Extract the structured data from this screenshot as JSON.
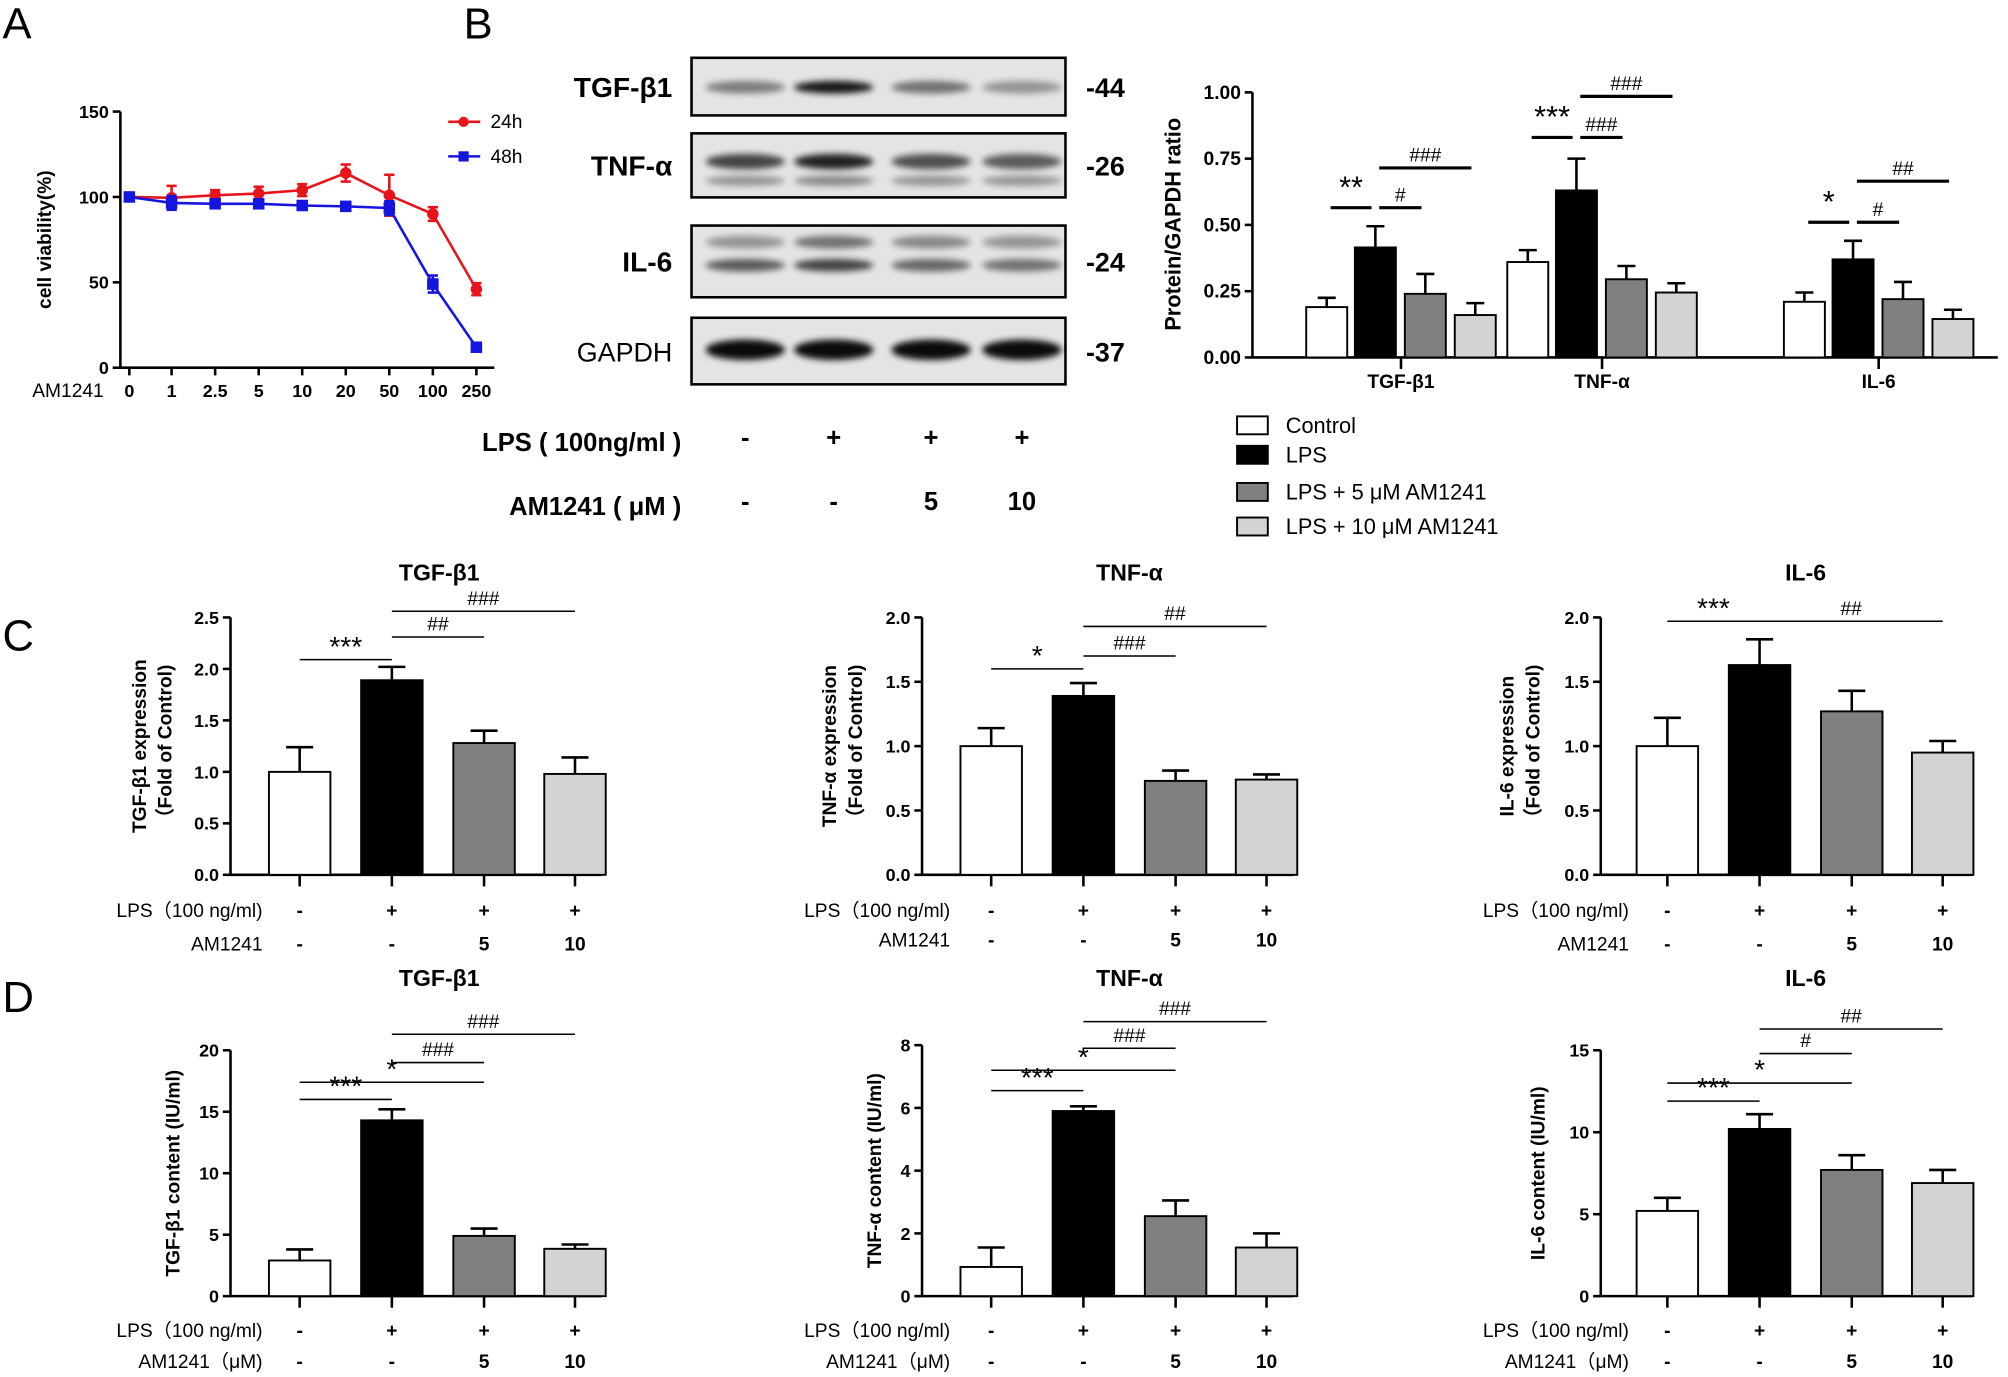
{
  "panel_labels": {
    "A": "A",
    "B": "B",
    "C": "C",
    "D": "D"
  },
  "colors": {
    "fills": [
      "#ffffff",
      "#000000",
      "#808080",
      "#d3d3d3"
    ],
    "red": "#e8141b",
    "blue": "#1515e0"
  },
  "blot": {
    "rows": [
      {
        "label": "TGF-β1",
        "mw": "-44"
      },
      {
        "label": "TNF-α",
        "mw": "-26"
      },
      {
        "label": "IL-6",
        "mw": "-24"
      },
      {
        "label": "GAPDH",
        "mw": "-37"
      }
    ],
    "conditions": [
      {
        "label": "LPS ( 100ng/ml )",
        "values": [
          "-",
          "+",
          "+",
          "+"
        ]
      },
      {
        "label": "AM1241 ( μM )",
        "values": [
          "-",
          "-",
          "5",
          "10"
        ]
      }
    ]
  },
  "chart_data": [
    {
      "id": "A",
      "type": "line",
      "xlabel": "AM1241",
      "ylabel": "cell viability(%)",
      "categories": [
        "0",
        "1",
        "2.5",
        "5",
        "10",
        "20",
        "50",
        "100",
        "250"
      ],
      "ylim": [
        0,
        150
      ],
      "yticks": [
        "0",
        "50",
        "100",
        "150"
      ],
      "legend_position": "top-right",
      "series": [
        {
          "name": "24h",
          "marker": "circle",
          "color": "#e8141b",
          "values": [
            100,
            99.5,
            101,
            102,
            104,
            114,
            101,
            90,
            46
          ],
          "errors": [
            1,
            7,
            3,
            4,
            3.5,
            5,
            12,
            4,
            3.5
          ]
        },
        {
          "name": "48h",
          "marker": "square",
          "color": "#1515e0",
          "values": [
            100,
            96.5,
            96,
            96,
            95,
            94.5,
            93.5,
            49,
            12
          ],
          "errors": [
            1,
            4,
            1,
            1,
            1,
            1,
            4,
            5,
            1
          ]
        }
      ]
    },
    {
      "id": "B",
      "type": "bar",
      "ylabel": "Protein/GAPDH ratio",
      "categories": [
        "TGF-β1",
        "TNF-α",
        "IL-6"
      ],
      "ylim": [
        0,
        1
      ],
      "yticks": [
        "0.00",
        "0.25",
        "0.50",
        "0.75",
        "1.00"
      ],
      "legend": [
        "Control",
        "LPS",
        "LPS + 5 μM AM1241",
        "LPS + 10 μM AM1241"
      ],
      "series_values": [
        [
          0.19,
          0.415,
          0.24,
          0.16
        ],
        [
          0.36,
          0.63,
          0.295,
          0.245
        ],
        [
          0.21,
          0.37,
          0.22,
          0.145
        ]
      ],
      "series_errors": [
        [
          0.035,
          0.08,
          0.075,
          0.045
        ],
        [
          0.045,
          0.12,
          0.05,
          0.035
        ],
        [
          0.035,
          0.07,
          0.065,
          0.035
        ]
      ],
      "significance": [
        [
          {
            "from": 0,
            "to": 1,
            "y": 0.565,
            "label": "**"
          },
          {
            "from": 1,
            "to": 2,
            "y": 0.565,
            "label": "#"
          },
          {
            "from": 1,
            "to": 3,
            "y": 0.715,
            "label": "###"
          }
        ],
        [
          {
            "from": 0,
            "to": 1,
            "y": 0.83,
            "label": "***"
          },
          {
            "from": 1,
            "to": 2,
            "y": 0.83,
            "label": "###"
          },
          {
            "from": 1,
            "to": 3,
            "y": 0.985,
            "label": "###"
          }
        ],
        [
          {
            "from": 0,
            "to": 1,
            "y": 0.51,
            "label": "*"
          },
          {
            "from": 1,
            "to": 2,
            "y": 0.51,
            "label": "#"
          },
          {
            "from": 1,
            "to": 3,
            "y": 0.665,
            "label": "##"
          }
        ]
      ]
    },
    {
      "id": "C1",
      "type": "bar",
      "title": "TGF-β1",
      "ylabel": [
        "TGF-β1 expression",
        "（Fold of Control)"
      ],
      "ylim": [
        0,
        2.5
      ],
      "yticks": [
        "0.0",
        "0.5",
        "1.0",
        "1.5",
        "2.0",
        "2.5"
      ],
      "values": [
        1.0,
        1.89,
        1.28,
        0.98
      ],
      "errors": [
        0.24,
        0.13,
        0.12,
        0.16
      ],
      "conditions": [
        {
          "label": "LPS（100 ng/ml)",
          "values": [
            "-",
            "+",
            "+",
            "+"
          ]
        },
        {
          "label": "AM1241",
          "values": [
            "-",
            "-",
            "5",
            "10"
          ]
        }
      ],
      "significance": [
        {
          "from": 0,
          "to": 1,
          "y": 2.09,
          "label": "***"
        },
        {
          "from": 1,
          "to": 2,
          "y": 2.31,
          "label": "##"
        },
        {
          "from": 1,
          "to": 3,
          "y": 2.56,
          "label": "###"
        }
      ]
    },
    {
      "id": "C2",
      "type": "bar",
      "title": "TNF-α",
      "ylabel": [
        "TNF-α expression",
        "（Fold of Control)"
      ],
      "ylim": [
        0,
        2
      ],
      "yticks": [
        "0.0",
        "0.5",
        "1.0",
        "1.5",
        "2.0"
      ],
      "values": [
        1.0,
        1.39,
        0.73,
        0.74
      ],
      "errors": [
        0.14,
        0.1,
        0.08,
        0.04
      ],
      "conditions": [
        {
          "label": "LPS（100 ng/ml)",
          "values": [
            "-",
            "+",
            "+",
            "+"
          ]
        },
        {
          "label": "AM1241",
          "values": [
            "-",
            "-",
            "5",
            "10"
          ]
        }
      ],
      "significance": [
        {
          "from": 0,
          "to": 1,
          "y": 1.6,
          "label": "*"
        },
        {
          "from": 1,
          "to": 2,
          "y": 1.7,
          "label": "###"
        },
        {
          "from": 1,
          "to": 3,
          "y": 1.93,
          "label": "##"
        }
      ]
    },
    {
      "id": "C3",
      "type": "bar",
      "title": "IL-6",
      "ylabel": [
        "IL-6 expression",
        "（Fold of Control)"
      ],
      "ylim": [
        0,
        2
      ],
      "yticks": [
        "0.0",
        "0.5",
        "1.0",
        "1.5",
        "2.0"
      ],
      "values": [
        1.0,
        1.63,
        1.27,
        0.95
      ],
      "errors": [
        0.22,
        0.2,
        0.16,
        0.09
      ],
      "conditions": [
        {
          "label": "LPS（100 ng/ml)",
          "values": [
            "-",
            "+",
            "+",
            "+"
          ]
        },
        {
          "label": "AM1241",
          "values": [
            "-",
            "-",
            "5",
            "10"
          ]
        }
      ],
      "significance": [
        {
          "from": 0,
          "to": 1,
          "y": 1.97,
          "label": "***"
        },
        {
          "from": 1,
          "to": 3,
          "y": 1.97,
          "label": "##"
        }
      ]
    },
    {
      "id": "D1",
      "type": "bar",
      "title": "TGF-β1",
      "ylabel": [
        "TGF-β1 content (IU/ml)"
      ],
      "ylim": [
        0,
        20
      ],
      "yticks": [
        "0",
        "5",
        "10",
        "15",
        "20"
      ],
      "values": [
        2.9,
        14.3,
        4.9,
        3.85
      ],
      "errors": [
        0.9,
        0.9,
        0.6,
        0.35
      ],
      "conditions": [
        {
          "label": "LPS（100 ng/ml)",
          "values": [
            "-",
            "+",
            "+",
            "+"
          ]
        },
        {
          "label": "AM1241（μM)",
          "values": [
            "-",
            "-",
            "5",
            "10"
          ]
        }
      ],
      "significance": [
        {
          "from": 0,
          "to": 1,
          "y": 16.0,
          "label": "***"
        },
        {
          "from": 0,
          "to": 2,
          "y": 17.4,
          "label": "*"
        },
        {
          "from": 1,
          "to": 2,
          "y": 19.0,
          "label": "###"
        },
        {
          "from": 1,
          "to": 3,
          "y": 21.3,
          "label": "###"
        }
      ]
    },
    {
      "id": "D2",
      "type": "bar",
      "title": "TNF-α",
      "ylabel": [
        "TNF-α content (IU/ml)"
      ],
      "ylim": [
        0,
        8
      ],
      "yticks": [
        "0",
        "2",
        "4",
        "6",
        "8"
      ],
      "values": [
        0.93,
        5.9,
        2.55,
        1.55
      ],
      "errors": [
        0.62,
        0.15,
        0.5,
        0.45
      ],
      "conditions": [
        {
          "label": "LPS（100 ng/ml)",
          "values": [
            "-",
            "+",
            "+",
            "+"
          ]
        },
        {
          "label": "AM1241（μM)",
          "values": [
            "-",
            "-",
            "5",
            "10"
          ]
        }
      ],
      "significance": [
        {
          "from": 0,
          "to": 1,
          "y": 6.55,
          "label": "***"
        },
        {
          "from": 0,
          "to": 2,
          "y": 7.2,
          "label": "*"
        },
        {
          "from": 1,
          "to": 2,
          "y": 7.9,
          "label": "###"
        },
        {
          "from": 1,
          "to": 3,
          "y": 8.75,
          "label": "###"
        }
      ]
    },
    {
      "id": "D3",
      "type": "bar",
      "title": "IL-6",
      "ylabel": [
        "IL-6 content (IU/ml)"
      ],
      "ylim": [
        0,
        15
      ],
      "yticks": [
        "0",
        "5",
        "10",
        "15"
      ],
      "values": [
        5.2,
        10.2,
        7.7,
        6.9
      ],
      "errors": [
        0.8,
        0.9,
        0.9,
        0.8
      ],
      "conditions": [
        {
          "label": "LPS（100 ng/ml)",
          "values": [
            "-",
            "+",
            "+",
            "+"
          ]
        },
        {
          "label": "AM1241（μM)",
          "values": [
            "-",
            "-",
            "5",
            "10"
          ]
        }
      ],
      "significance": [
        {
          "from": 0,
          "to": 1,
          "y": 11.9,
          "label": "***"
        },
        {
          "from": 0,
          "to": 2,
          "y": 13.0,
          "label": "*"
        },
        {
          "from": 1,
          "to": 2,
          "y": 14.8,
          "label": "#"
        },
        {
          "from": 1,
          "to": 3,
          "y": 16.3,
          "label": "##"
        }
      ]
    }
  ]
}
